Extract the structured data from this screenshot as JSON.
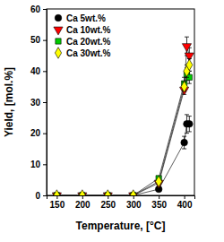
{
  "chart_data": {
    "type": "scatter",
    "x_label": "Temperature, [°C]",
    "y_label": "Yield, [mol.%]",
    "x": [
      150,
      200,
      250,
      300,
      350,
      400,
      405,
      410
    ],
    "series": [
      {
        "name": "Ca 5wt.%",
        "color": "#000000",
        "marker": "circle",
        "values": [
          0,
          0,
          0,
          0,
          2,
          17,
          23,
          23
        ],
        "errors": [
          0.3,
          0.3,
          0.3,
          0.3,
          0.5,
          2,
          3,
          2.5
        ]
      },
      {
        "name": "Ca 10wt.%",
        "color": "#ff0000",
        "marker": "triangle-down",
        "values": [
          0,
          0,
          0,
          0,
          4,
          34,
          48,
          45
        ],
        "errors": [
          0.3,
          0.3,
          0.3,
          0.3,
          0.5,
          1.5,
          3,
          2.5
        ]
      },
      {
        "name": "Ca 20wt.%",
        "color": "#00cc00",
        "marker": "square",
        "values": [
          0,
          0,
          0,
          0,
          5.5,
          36,
          39,
          38
        ],
        "errors": [
          0.3,
          0.3,
          0.3,
          0.3,
          0.5,
          2,
          2,
          2
        ]
      },
      {
        "name": "Ca 30wt.%",
        "color": "#ffff00",
        "marker": "diamond",
        "values": [
          0,
          0,
          0,
          0,
          4.5,
          35,
          40,
          42
        ],
        "errors": [
          0.3,
          0.3,
          0.3,
          0.3,
          0.5,
          1.5,
          2,
          2
        ]
      }
    ],
    "line_style": "solid",
    "xlim": [
      130,
      420
    ],
    "xticks": [
      150,
      200,
      250,
      300,
      350,
      400
    ],
    "ylim": [
      0,
      60
    ],
    "yticks": [
      0,
      10,
      20,
      30,
      40,
      50,
      60
    ],
    "legend": "upper-left",
    "grid": false
  }
}
